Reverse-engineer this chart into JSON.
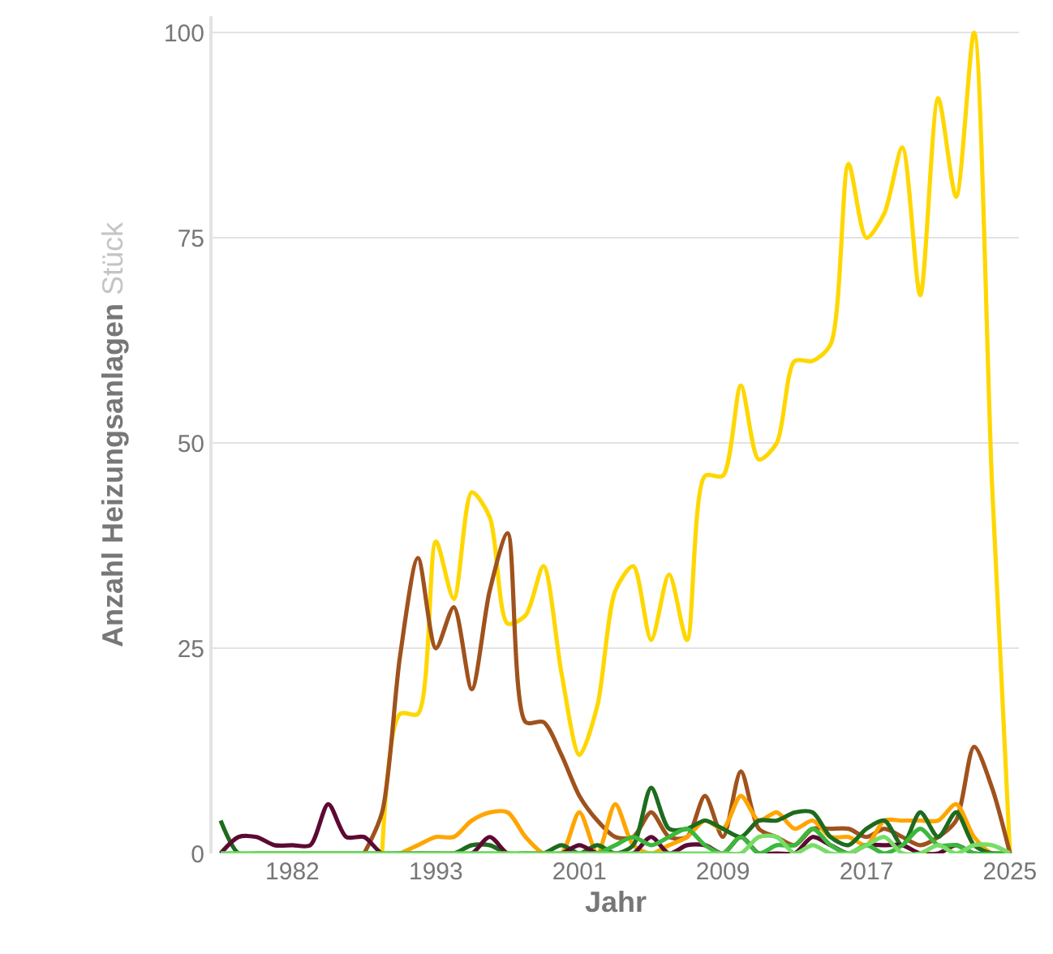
{
  "chart_data": {
    "type": "line",
    "xlabel": "Jahr",
    "ylabel": "Anzahl Heizungsanlagen",
    "annotations": [
      "Stück"
    ],
    "categories": [
      null,
      null,
      null,
      null,
      "1982",
      null,
      null,
      null,
      null,
      null,
      null,
      null,
      "1993",
      null,
      null,
      null,
      null,
      null,
      null,
      null,
      "2001",
      null,
      null,
      null,
      null,
      null,
      null,
      null,
      "2009",
      null,
      null,
      null,
      null,
      null,
      null,
      null,
      "2017",
      null,
      null,
      null,
      null,
      null,
      null,
      null,
      "2025"
    ],
    "ylim": [
      0,
      102
    ],
    "yticks": [
      0,
      25,
      50,
      75,
      100
    ],
    "grid": "y",
    "legend": false,
    "marker": "none",
    "line_style": "solid",
    "series": [
      {
        "color": "#ffd700",
        "values": [
          null,
          null,
          null,
          null,
          null,
          null,
          null,
          null,
          null,
          0,
          17,
          17,
          38,
          31,
          44,
          41,
          28,
          29,
          35,
          22,
          12,
          18,
          32,
          35,
          26,
          34,
          26,
          46,
          46,
          57,
          48,
          50,
          60,
          60,
          62,
          84,
          75,
          78,
          86,
          68,
          92,
          80,
          100,
          45,
          0
        ]
      },
      {
        "color": "#a0521d",
        "values": [
          null,
          null,
          null,
          null,
          null,
          null,
          null,
          null,
          0,
          5,
          24,
          36,
          25,
          30,
          20,
          32,
          39,
          16,
          16,
          12,
          7,
          4,
          2,
          2,
          5,
          2,
          2,
          7,
          2,
          10,
          3,
          2,
          1,
          3,
          3,
          3,
          2,
          3,
          2,
          1,
          2,
          4,
          13,
          8,
          0
        ]
      },
      {
        "color": "#ffa500",
        "values": [
          null,
          null,
          null,
          null,
          null,
          null,
          null,
          null,
          null,
          null,
          0,
          1,
          2,
          2,
          4,
          5,
          5,
          2,
          0,
          0,
          5,
          0,
          6,
          1,
          0,
          1,
          2,
          4,
          3,
          7,
          4,
          5,
          3,
          4,
          2,
          2,
          1,
          4,
          4,
          4,
          4,
          6,
          2,
          0,
          0
        ]
      },
      {
        "color": "#1e6b1e",
        "values": [
          4,
          0,
          0,
          0,
          0,
          0,
          0,
          0,
          0,
          0,
          0,
          0,
          0,
          0,
          1,
          1,
          0,
          0,
          0,
          1,
          0,
          1,
          0,
          1,
          8,
          3,
          3,
          4,
          3,
          2,
          4,
          4,
          5,
          5,
          2,
          1,
          3,
          4,
          1,
          5,
          2,
          5,
          1,
          0,
          0
        ]
      },
      {
        "color": "#5c0a33",
        "values": [
          0,
          2,
          2,
          1,
          1,
          1,
          6,
          2,
          2,
          0,
          0,
          0,
          0,
          0,
          0,
          2,
          0,
          0,
          0,
          0,
          1,
          0,
          0,
          0,
          2,
          0,
          1,
          1,
          0,
          2,
          0,
          0,
          0,
          2,
          1,
          0,
          1,
          1,
          1,
          0,
          0,
          1,
          0,
          0,
          0
        ]
      },
      {
        "color": "#3cb83c",
        "values": [
          0,
          0,
          0,
          0,
          0,
          0,
          0,
          0,
          0,
          0,
          0,
          0,
          0,
          0,
          0,
          0,
          0,
          0,
          0,
          0,
          0,
          0,
          1,
          2,
          1,
          2,
          3,
          1,
          0,
          2,
          0,
          1,
          1,
          3,
          1,
          0,
          1,
          0,
          1,
          3,
          1,
          1,
          0,
          0,
          0
        ]
      },
      {
        "color": "#77dd66",
        "values": [
          0,
          0,
          0,
          0,
          0,
          0,
          0,
          0,
          0,
          0,
          0,
          0,
          0,
          0,
          0,
          0,
          0,
          0,
          0,
          0,
          0,
          0,
          0,
          0,
          0,
          0,
          0,
          0,
          0,
          0,
          2,
          2,
          0,
          1,
          0,
          0,
          1,
          2,
          0,
          0,
          1,
          0,
          1,
          1,
          0
        ]
      }
    ]
  }
}
